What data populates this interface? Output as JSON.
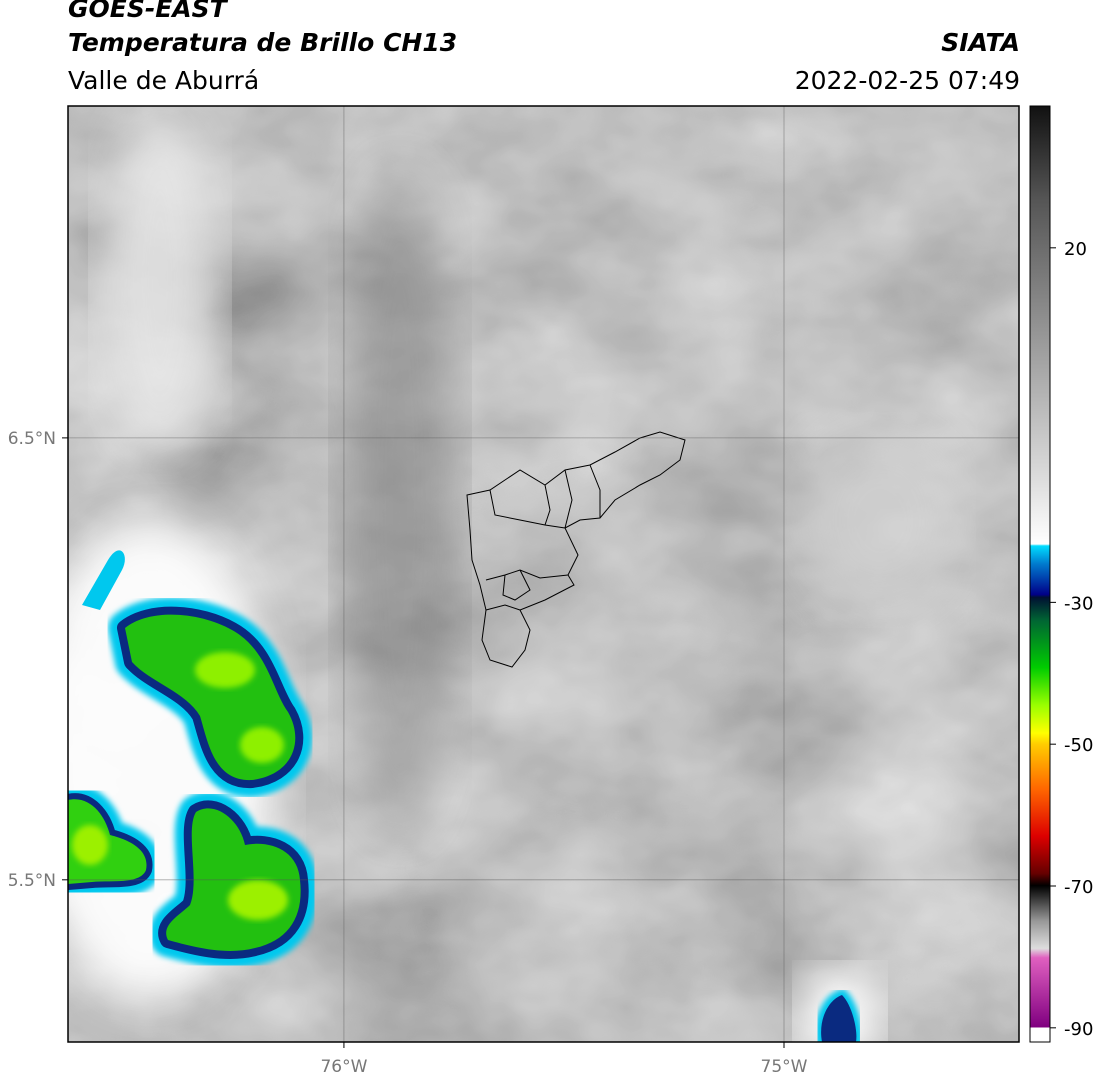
{
  "header": {
    "title": "GOES-EAST",
    "subtitle": "Temperatura de Brillo CH13",
    "region": "Valle de Aburrá",
    "source": "SIATA",
    "timestamp": "2022-02-25 07:49"
  },
  "map": {
    "lon_range": [
      -76.627,
      -74.466
    ],
    "lat_range": [
      5.133,
      7.251
    ],
    "lat_ticks": [
      {
        "value": 6.5,
        "label": "6.5°N"
      },
      {
        "value": 5.5,
        "label": "5.5°N"
      }
    ],
    "lon_ticks": [
      {
        "value": -76,
        "label": "76°W"
      },
      {
        "value": -75,
        "label": "75°W"
      }
    ],
    "grid": true
  },
  "colorbar": {
    "range": [
      -92,
      40
    ],
    "ticks": [
      20,
      -30,
      -50,
      -70,
      -90
    ]
  }
}
